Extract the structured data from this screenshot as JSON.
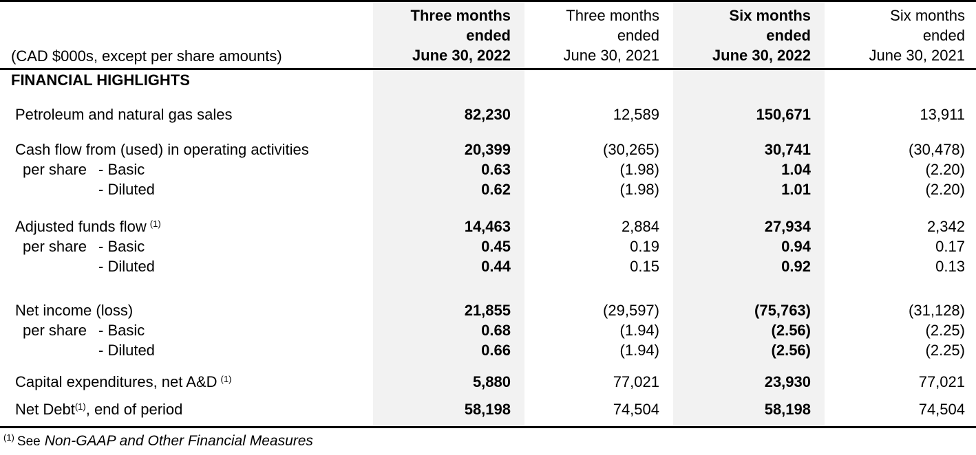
{
  "table": {
    "unit_label": "(CAD $000s, except per share amounts)",
    "section_header": "FINANCIAL HIGHLIGHTS",
    "columns": [
      {
        "period": "Three months",
        "ended": "ended",
        "date": "June 30, 2022",
        "emphasis": true
      },
      {
        "period": "Three months",
        "ended": "ended",
        "date": "June 30, 2021",
        "emphasis": false
      },
      {
        "period": "Six months",
        "ended": "ended",
        "date": "June 30, 2022",
        "emphasis": true
      },
      {
        "period": "Six months",
        "ended": "ended",
        "date": "June 30, 2021",
        "emphasis": false
      }
    ],
    "rows": [
      {
        "kind": "main",
        "label": "Petroleum and natural gas sales",
        "values": [
          "82,230",
          "12,589",
          "150,671",
          "13,911"
        ]
      },
      {
        "kind": "main",
        "label": "Cash flow from (used) in operating activities",
        "values": [
          "20,399",
          "(30,265)",
          "30,741",
          "(30,478)"
        ]
      },
      {
        "kind": "pershare",
        "lead": "per share",
        "label": "- Basic",
        "values": [
          "0.63",
          "(1.98)",
          "1.04",
          "(2.20)"
        ]
      },
      {
        "kind": "pershare",
        "lead": "",
        "label": "- Diluted",
        "values": [
          "0.62",
          "(1.98)",
          "1.01",
          "(2.20)"
        ]
      },
      {
        "kind": "main",
        "label": "Adjusted funds flow",
        "sup": "(1)",
        "sup_gap": true,
        "values": [
          "14,463",
          "2,884",
          "27,934",
          "2,342"
        ]
      },
      {
        "kind": "pershare",
        "lead": "per share",
        "label": "- Basic",
        "values": [
          "0.45",
          "0.19",
          "0.94",
          "0.17"
        ]
      },
      {
        "kind": "pershare",
        "lead": "",
        "label": "- Diluted",
        "values": [
          "0.44",
          "0.15",
          "0.92",
          "0.13"
        ]
      },
      {
        "kind": "main",
        "label": "Net income (loss)",
        "values": [
          "21,855",
          "(29,597)",
          "(75,763)",
          "(31,128)"
        ]
      },
      {
        "kind": "pershare",
        "lead": "per share",
        "label": "- Basic",
        "values": [
          "0.68",
          "(1.94)",
          "(2.56)",
          "(2.25)"
        ]
      },
      {
        "kind": "pershare",
        "lead": "",
        "label": "- Diluted",
        "values": [
          "0.66",
          "(1.94)",
          "(2.56)",
          "(2.25)"
        ]
      },
      {
        "kind": "main",
        "label": "Capital expenditures, net A&D",
        "sup": "(1)",
        "sup_gap": true,
        "values": [
          "5,880",
          "77,021",
          "23,930",
          "77,021"
        ]
      },
      {
        "kind": "main",
        "label": "Net Debt",
        "sup": "(1)",
        "suffix": ", end of period",
        "values": [
          "58,198",
          "74,504",
          "58,198",
          "74,504"
        ]
      }
    ]
  },
  "footnote": {
    "marker": "(1)",
    "prefix": "See",
    "reference": "Non-GAAP and Other Financial Measures"
  },
  "colors": {
    "column_shade": "#f2f2f2",
    "border": "#000000",
    "text": "#000000",
    "background": "#ffffff"
  }
}
